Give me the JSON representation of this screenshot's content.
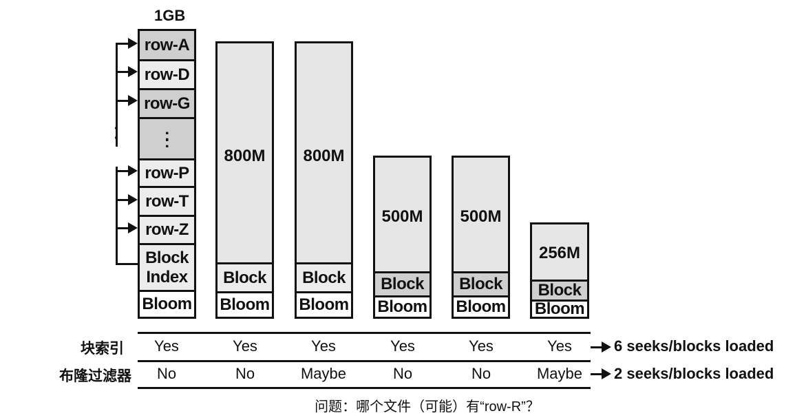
{
  "files": [
    {
      "size_label": "1GB",
      "cells": [
        "row-A",
        "row-D",
        "row-G",
        ":",
        "row-P",
        "row-T",
        "row-Z",
        "Block\nIndex",
        "Bloom"
      ]
    },
    {
      "size_label": "800M",
      "block_label": "Block",
      "bloom_label": "Bloom"
    },
    {
      "size_label": "800M",
      "block_label": "Block",
      "bloom_label": "Bloom"
    },
    {
      "size_label": "500M",
      "block_label": "Block",
      "bloom_label": "Bloom"
    },
    {
      "size_label": "500M",
      "block_label": "Block",
      "bloom_label": "Bloom"
    },
    {
      "size_label": "256M",
      "block_label": "Block",
      "bloom_label": "Bloom"
    }
  ],
  "rows": [
    {
      "label": "块索引",
      "values": [
        "Yes",
        "Yes",
        "Yes",
        "Yes",
        "Yes",
        "Yes"
      ],
      "result": "6 seeks/blocks loaded"
    },
    {
      "label": "布隆过滤器",
      "values": [
        "No",
        "No",
        "Maybe",
        "No",
        "No",
        "Maybe"
      ],
      "result": "2 seeks/blocks loaded"
    }
  ],
  "caption": "问题：哪个文件（可能）有“row-R”？"
}
